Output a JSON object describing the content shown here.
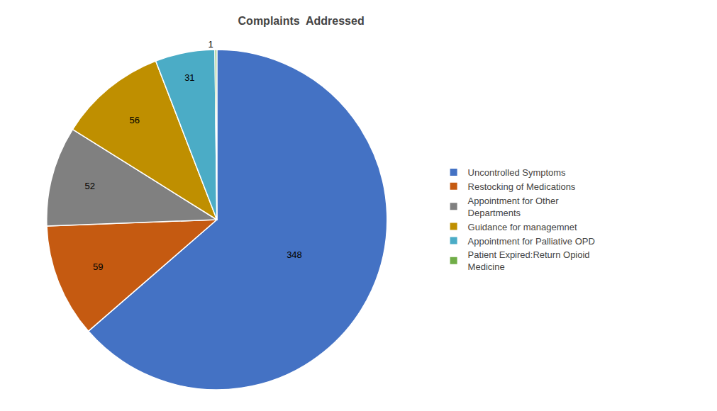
{
  "chart_data": {
    "type": "pie",
    "title": "Complaints  Addressed",
    "categories": [
      "Uncontrolled Symptoms",
      "Restocking of Medications",
      "Appointment for Other\nDepartments",
      "Guidance for managemnet",
      "Appointment for Palliative OPD",
      "Patient Expired:Return Opioid\nMedicine"
    ],
    "values": [
      348,
      59,
      52,
      56,
      31,
      1
    ],
    "colors": [
      "#4472C4",
      "#C55A11",
      "#808080",
      "#BF8F00",
      "#4BACC6",
      "#70AD47"
    ],
    "data_labels": true,
    "legend": "right"
  }
}
